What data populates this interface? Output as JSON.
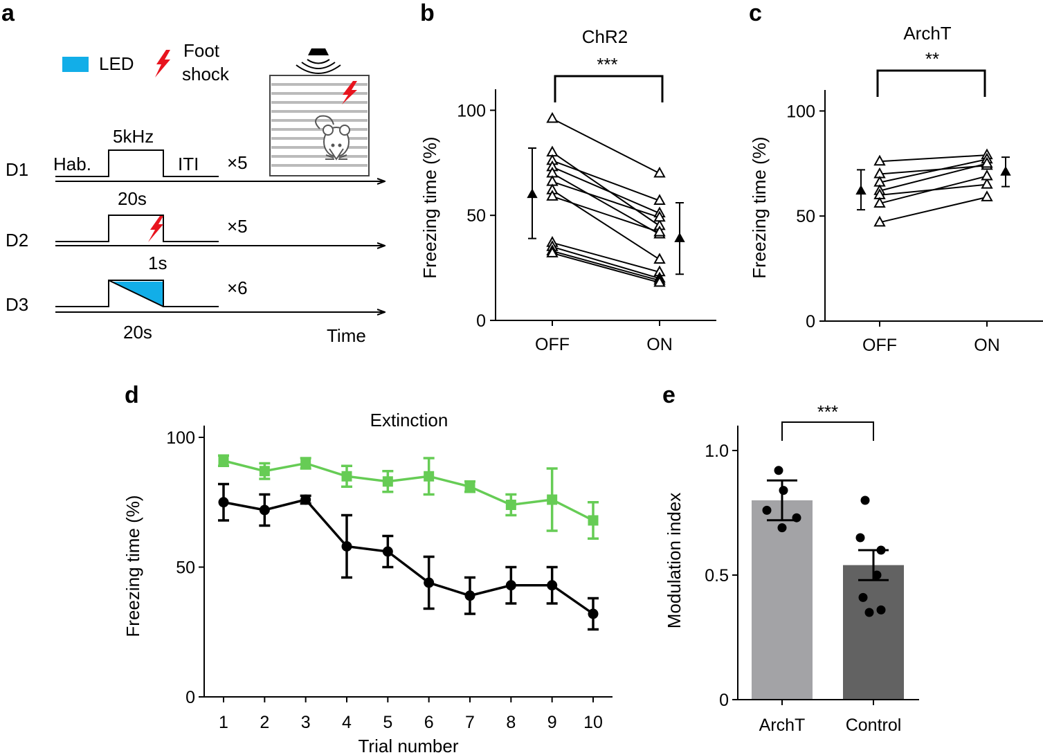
{
  "panel_labels": {
    "a": "a",
    "b": "b",
    "c": "c",
    "d": "d",
    "e": "e"
  },
  "colors": {
    "led": "#12aee8",
    "shock": "#e8141e",
    "green": "#66cc55",
    "black": "#000000",
    "bar_archt": "#a3a3a6",
    "bar_control": "#626262"
  },
  "protocol": {
    "legend_led": "LED",
    "legend_shock_1": "Foot",
    "legend_shock_2": "shock",
    "icons": [
      "speaker-icon",
      "lightning-icon",
      "mouse-icon",
      "cage-icon"
    ],
    "d1": {
      "label": "D1",
      "hab": "Hab.",
      "tone": "5kHz",
      "iti": "ITI",
      "reps": "×5",
      "duration": "20s"
    },
    "d2": {
      "label": "D2",
      "reps": "×5",
      "shock_duration": "1s"
    },
    "d3": {
      "label": "D3",
      "reps": "×6",
      "duration": "20s"
    },
    "time_label": "Time"
  },
  "chart_data": [
    {
      "panel": "b",
      "type": "line",
      "title": "ChR2",
      "xlabel": "",
      "ylabel": "Freezing time (%)",
      "categories": [
        "OFF",
        "ON"
      ],
      "ylim": [
        0,
        110
      ],
      "yticks": [
        0,
        50,
        100
      ],
      "pairs": [
        [
          96,
          70
        ],
        [
          80,
          45
        ],
        [
          76,
          57
        ],
        [
          73,
          51
        ],
        [
          70,
          41
        ],
        [
          66,
          49
        ],
        [
          62,
          29
        ],
        [
          59,
          42
        ],
        [
          37,
          23
        ],
        [
          35,
          20
        ],
        [
          33,
          19
        ],
        [
          32,
          18
        ]
      ],
      "mean": [
        {
          "value": 60,
          "err_low": 39,
          "err_high": 82
        },
        {
          "value": 39,
          "err_low": 22,
          "err_high": 56
        }
      ],
      "significance": "***"
    },
    {
      "panel": "c",
      "type": "line",
      "title": "ArchT",
      "xlabel": "",
      "ylabel": "Freezing time (%)",
      "categories": [
        "OFF",
        "ON"
      ],
      "ylim": [
        0,
        110
      ],
      "yticks": [
        0,
        50,
        100
      ],
      "pairs": [
        [
          76,
          79
        ],
        [
          70,
          74
        ],
        [
          66,
          77
        ],
        [
          62,
          75
        ],
        [
          60,
          65
        ],
        [
          56,
          69
        ],
        [
          47,
          59
        ]
      ],
      "mean": [
        {
          "value": 62,
          "err_low": 53,
          "err_high": 72
        },
        {
          "value": 71,
          "err_low": 64,
          "err_high": 78
        }
      ],
      "significance": "**"
    },
    {
      "panel": "d",
      "type": "line",
      "title": "Extinction",
      "xlabel": "Trial number",
      "ylabel": "Freezing time (%)",
      "x": [
        1,
        2,
        3,
        4,
        5,
        6,
        7,
        8,
        9,
        10
      ],
      "ylim": [
        0,
        100
      ],
      "yticks": [
        0,
        50,
        100
      ],
      "series": [
        {
          "name": "green",
          "marker": "square",
          "color": "#66cc55",
          "values": [
            91,
            87,
            90,
            85,
            83,
            85,
            81,
            74,
            76,
            68
          ],
          "errors": [
            2,
            3,
            2,
            4,
            4,
            7,
            2,
            4,
            12,
            7
          ]
        },
        {
          "name": "black",
          "marker": "circle",
          "color": "#000000",
          "values": [
            75,
            72,
            76,
            58,
            56,
            44,
            39,
            43,
            43,
            32
          ],
          "errors": [
            7,
            6,
            1.5,
            12,
            6,
            10,
            7,
            7,
            7,
            6
          ]
        }
      ]
    },
    {
      "panel": "e",
      "type": "bar",
      "title": "",
      "xlabel": "",
      "ylabel": "Modulation index",
      "categories": [
        "ArchT",
        "Control"
      ],
      "ylim": [
        0,
        1.1
      ],
      "yticks": [
        "0",
        "0.5",
        "1.0"
      ],
      "ytick_values": [
        0,
        0.5,
        1.0
      ],
      "values": [
        0.8,
        0.54
      ],
      "errors": [
        0.08,
        0.06
      ],
      "points": [
        [
          0.92,
          0.84,
          0.76,
          0.73,
          0.69
        ],
        [
          0.8,
          0.65,
          0.6,
          0.5,
          0.41,
          0.36,
          0.35
        ]
      ],
      "significance": "***"
    }
  ]
}
